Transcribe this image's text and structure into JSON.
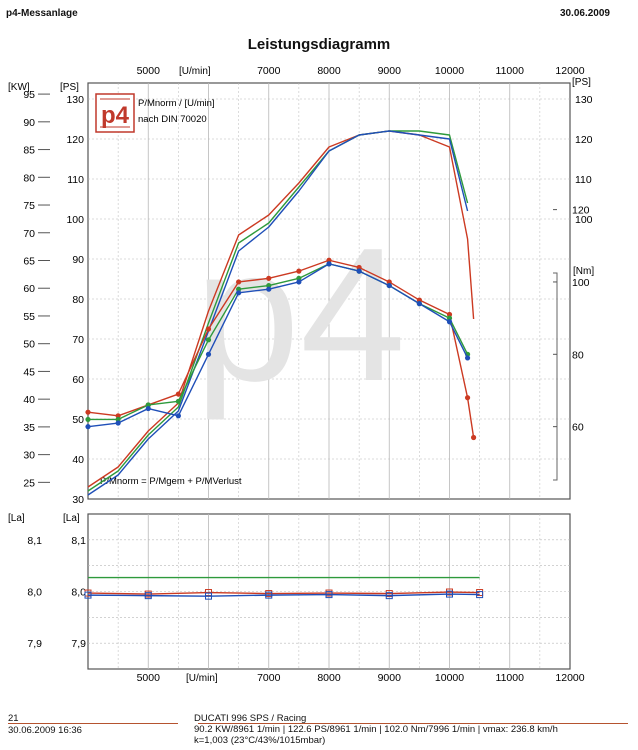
{
  "header": {
    "left": "p4-Messanlage",
    "date": "30.06.2009",
    "title": "Leistungsdiagramm"
  },
  "logo": {
    "text": "p4",
    "watermark": "p4"
  },
  "legend": {
    "line1": "P/Mnorm / [U/min]",
    "line2": "nach DIN 70020"
  },
  "formula": "P/Mnorm = P/Mgem + P/MVerlust",
  "colors": {
    "red": "#cc3a22",
    "green": "#2e9a3c",
    "blue": "#1f4fb8",
    "frame": "#555555",
    "grid": "#b8b8b8"
  },
  "chart_data": [
    {
      "type": "line",
      "xlabel": "[U/min]",
      "x_ticks": [
        "5000",
        "7000",
        "8000",
        "9000",
        "10000",
        "11000",
        "12000"
      ],
      "xlim": [
        4000,
        12000
      ],
      "axes": {
        "kw": {
          "label": "[KW]",
          "ticks": [
            "95",
            "90",
            "85",
            "80",
            "75",
            "70",
            "65",
            "60",
            "55",
            "50",
            "45",
            "40",
            "35",
            "30",
            "25"
          ],
          "range": [
            22,
            97
          ]
        },
        "ps_left": {
          "label": "[PS]",
          "ticks": [
            "130",
            "120",
            "110",
            "100",
            "90",
            "80",
            "70",
            "60",
            "50",
            "40",
            "30"
          ],
          "range": [
            30,
            134
          ]
        },
        "ps_right": {
          "label": "[PS]",
          "ticks": [
            "130",
            "120",
            "110",
            "100"
          ],
          "range": [
            30,
            134
          ]
        },
        "nm_right": {
          "label": "[Nm]",
          "ticks": [
            "120",
            "100",
            "80",
            "60"
          ],
          "range": [
            40,
            155
          ]
        }
      },
      "series": [
        {
          "name": "",
          "unit": "PS",
          "color": "red",
          "x": [
            4000,
            4500,
            5000,
            5500,
            6000,
            6500,
            7000,
            7500,
            8000,
            8500,
            9000,
            9500,
            10000,
            10300,
            10400
          ],
          "values": [
            33,
            38,
            47,
            54,
            77,
            96,
            101,
            109,
            118,
            121,
            122,
            121,
            118,
            95,
            75
          ]
        },
        {
          "name": "",
          "unit": "PS",
          "color": "green",
          "x": [
            4000,
            4500,
            5000,
            5500,
            6000,
            6500,
            7000,
            7500,
            8000,
            8500,
            9000,
            9500,
            10000,
            10300
          ],
          "values": [
            32,
            37,
            46,
            53,
            74,
            94,
            99,
            108,
            117,
            121,
            122,
            122,
            121,
            104
          ]
        },
        {
          "name": "",
          "unit": "PS",
          "color": "blue",
          "x": [
            4000,
            4500,
            5000,
            5500,
            6000,
            6500,
            7000,
            7500,
            8000,
            8500,
            9000,
            9500,
            10000,
            10300
          ],
          "values": [
            31,
            36,
            45,
            52,
            72,
            92,
            98,
            107,
            117,
            121,
            122,
            121,
            120,
            102
          ]
        },
        {
          "name": "",
          "unit": "Nm",
          "color": "red",
          "x": [
            4000,
            4500,
            5000,
            5500,
            6000,
            6500,
            7000,
            7500,
            8000,
            8500,
            9000,
            9500,
            10000,
            10300,
            10400
          ],
          "values": [
            64,
            63,
            66,
            69,
            87,
            100,
            101,
            103,
            106,
            104,
            100,
            95,
            91,
            68,
            57
          ]
        },
        {
          "name": "",
          "unit": "Nm",
          "color": "green",
          "x": [
            4000,
            4500,
            5000,
            5500,
            6000,
            6500,
            7000,
            7500,
            8000,
            8500,
            9000,
            9500,
            10000,
            10300
          ],
          "values": [
            62,
            62,
            66,
            67,
            84,
            98,
            99,
            101,
            105,
            103,
            99,
            94,
            90,
            80
          ]
        },
        {
          "name": "",
          "unit": "Nm",
          "color": "blue",
          "x": [
            4000,
            4500,
            5000,
            5500,
            6000,
            6500,
            7000,
            7500,
            8000,
            8500,
            9000,
            9500,
            10000,
            10300
          ],
          "values": [
            60,
            61,
            65,
            63,
            80,
            97,
            98,
            100,
            105,
            103,
            99,
            94,
            89,
            79
          ]
        }
      ]
    },
    {
      "type": "line",
      "xlabel": "[U/min]",
      "x_ticks": [
        "5000",
        "7000",
        "8000",
        "9000",
        "10000",
        "11000",
        "12000"
      ],
      "xlim": [
        4000,
        12000
      ],
      "ylabel_left": "[La]",
      "ylabel_inner": "[La]",
      "y_ticks": [
        "8,1",
        "8,0",
        "7,9"
      ],
      "ylim": [
        7.85,
        8.15
      ],
      "series": [
        {
          "name": "",
          "color": "green",
          "x": [
            4000,
            10500
          ],
          "values": [
            8.027,
            8.027
          ]
        },
        {
          "name": "",
          "color": "red",
          "x": [
            4000,
            5000,
            6000,
            7000,
            8000,
            9000,
            10000,
            10500
          ],
          "values": [
            7.997,
            7.995,
            7.998,
            7.996,
            7.997,
            7.996,
            7.999,
            7.998
          ]
        },
        {
          "name": "",
          "color": "blue",
          "x": [
            4000,
            5000,
            6000,
            7000,
            8000,
            9000,
            10000,
            10500
          ],
          "values": [
            7.993,
            7.992,
            7.991,
            7.993,
            7.994,
            7.992,
            7.995,
            7.994
          ]
        }
      ]
    }
  ],
  "footer": {
    "index": "21",
    "datetime": "30.06.2009  16:36",
    "vehicle": "DUCATI 996 SPS / Racing",
    "results": "90.2 KW/8961 1/min  |  122.6 PS/8961 1/min  |  102.0 Nm/7996 1/min  |  vmax: 236.8 km/h",
    "conditions": "k=1,003 (23°C/43%/1015mbar)"
  }
}
